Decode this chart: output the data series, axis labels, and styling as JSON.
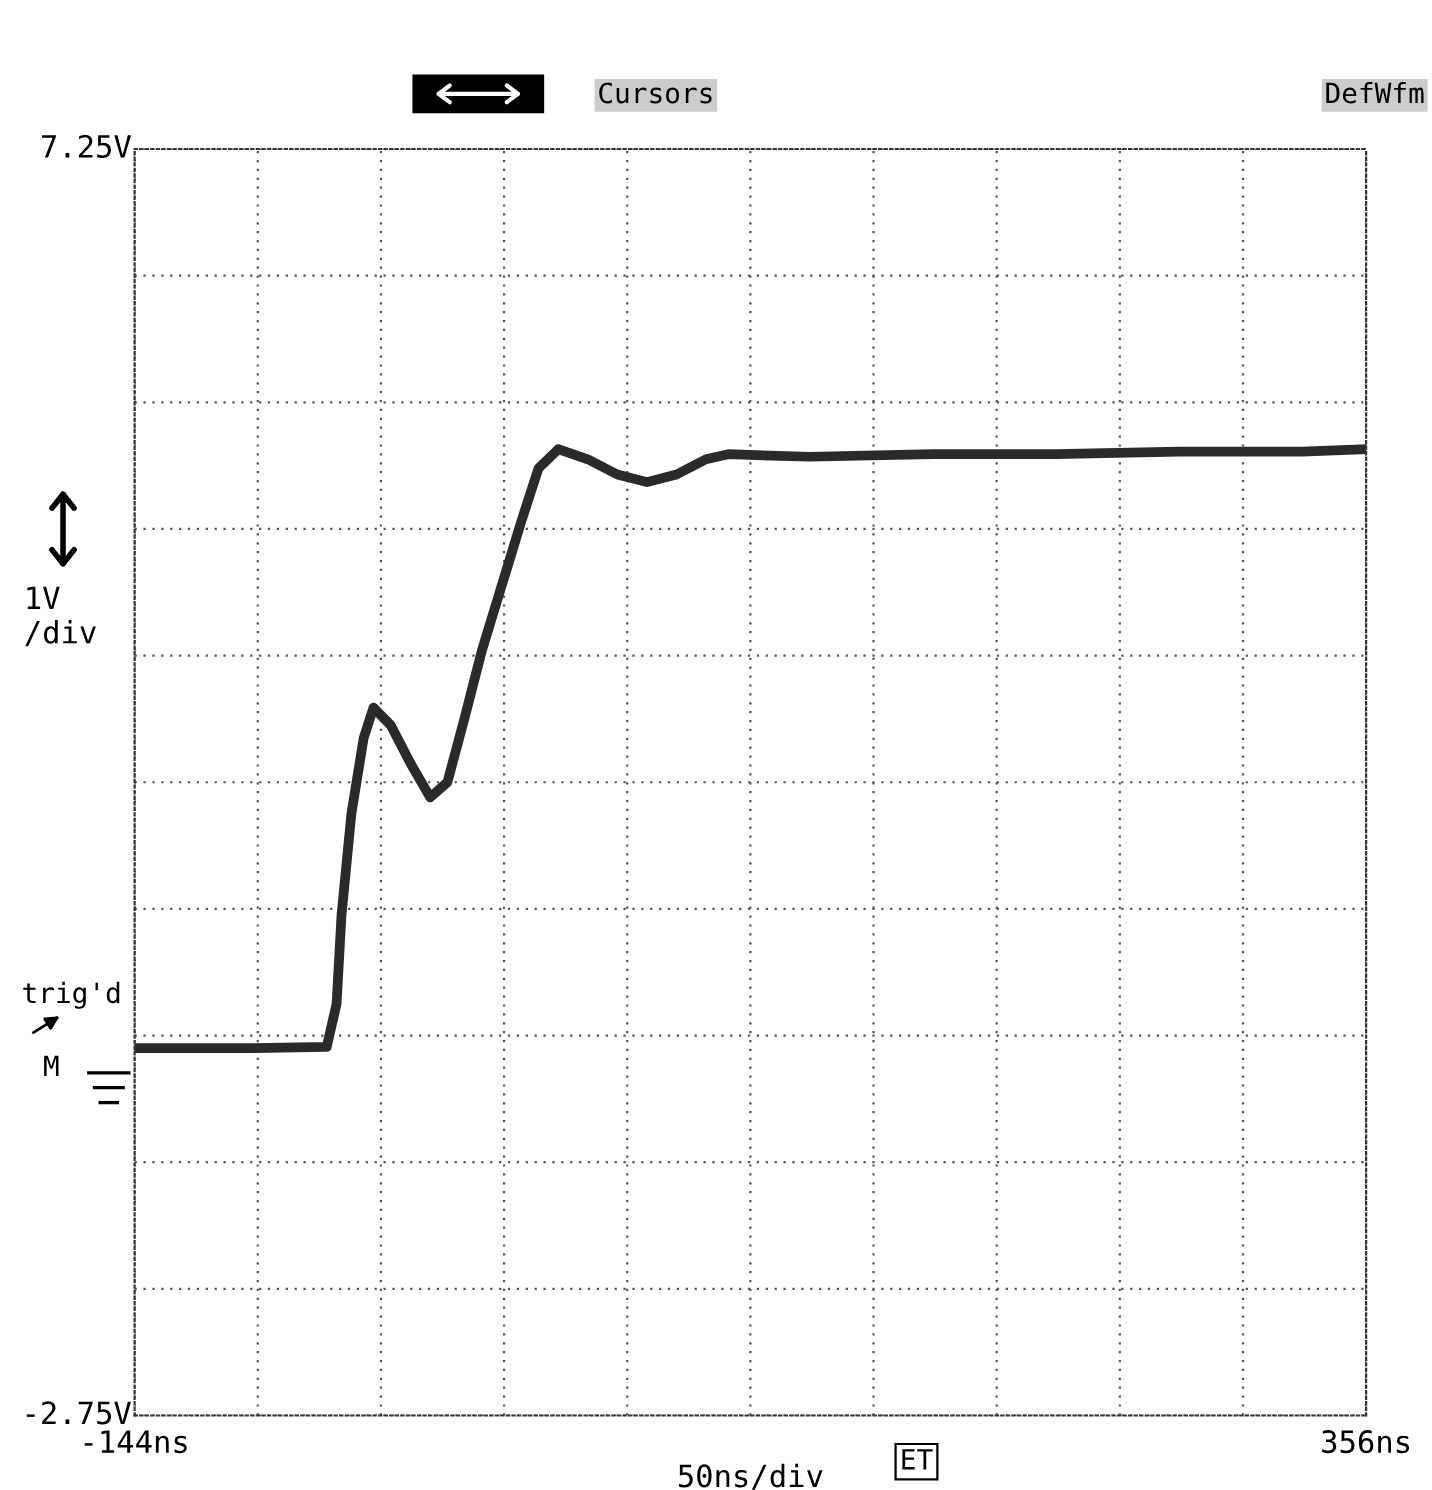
{
  "chart_data": {
    "type": "line",
    "xlabel": "50ns/div",
    "ylabel": "1V\n/div",
    "x": [
      -144,
      -100,
      -66,
      -62,
      -60,
      -56,
      -51,
      -47,
      -40,
      -32,
      -24,
      -17,
      -10,
      -3,
      5,
      13,
      20,
      28,
      40,
      52,
      64,
      76,
      88,
      97,
      130,
      180,
      230,
      280,
      330,
      356
    ],
    "series": [
      {
        "color": "#2a2a2a",
        "values": [
          0.15,
          0.15,
          0.16,
          0.5,
          1.2,
          2.0,
          2.6,
          2.84,
          2.7,
          2.4,
          2.13,
          2.25,
          2.76,
          3.29,
          3.8,
          4.31,
          4.73,
          4.88,
          4.8,
          4.68,
          4.62,
          4.68,
          4.8,
          4.84,
          4.82,
          4.84,
          4.84,
          4.86,
          4.86,
          4.88
        ]
      }
    ],
    "xlim": [
      -144,
      356
    ],
    "xticks": [
      {
        "value": -144,
        "label": "-144ns"
      },
      {
        "value": -94,
        "label": null
      },
      {
        "value": -44,
        "label": null
      },
      {
        "value": 6,
        "label": null
      },
      {
        "value": 56,
        "label": null
      },
      {
        "value": 106,
        "label": null
      },
      {
        "value": 156,
        "label": null
      },
      {
        "value": 206,
        "label": null
      },
      {
        "value": 256,
        "label": null
      },
      {
        "value": 306,
        "label": null
      },
      {
        "value": 356,
        "label": "356ns"
      }
    ],
    "ylim": [
      -2.75,
      7.25
    ],
    "yticks": [
      {
        "value": -2.75,
        "label": "-2.75V"
      },
      {
        "value": -1.75,
        "label": null
      },
      {
        "value": -0.75,
        "label": null
      },
      {
        "value": 0.25,
        "label": null
      },
      {
        "value": 1.25,
        "label": null
      },
      {
        "value": 2.25,
        "label": null
      },
      {
        "value": 3.25,
        "label": null
      },
      {
        "value": 4.25,
        "label": null
      },
      {
        "value": 5.25,
        "label": null
      },
      {
        "value": 6.25,
        "label": null
      },
      {
        "value": 7.25,
        "label": "7.25V"
      }
    ],
    "grid": true,
    "marker": "none",
    "line_style": "solid",
    "annotations": [
      "Cursors",
      "DefWfm",
      "trig'd",
      "M",
      "ET"
    ]
  }
}
